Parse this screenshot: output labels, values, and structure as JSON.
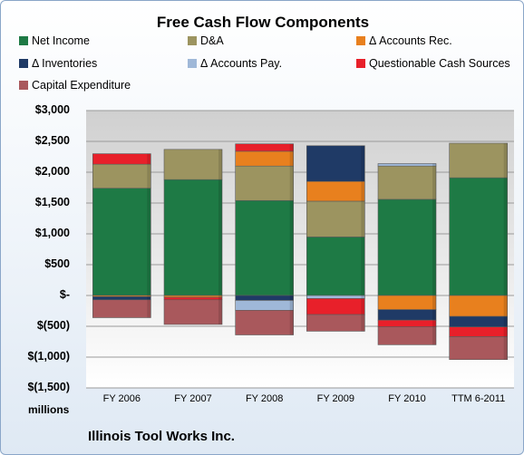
{
  "chart_data": {
    "type": "bar",
    "stacked": true,
    "title": "Free Cash Flow Components",
    "categories": [
      "FY 2006",
      "FY 2007",
      "FY 2008",
      "FY 2009",
      "FY 2010",
      "TTM 6-2011"
    ],
    "ylim": [
      -1500,
      3000
    ],
    "yticks": [
      3000,
      2500,
      2000,
      1500,
      1000,
      500,
      0,
      -500,
      -1000,
      -1500
    ],
    "ytick_labels": [
      "$3,000",
      "$2,500",
      "$2,000",
      "$1,500",
      "$1,000",
      "$500",
      "$-",
      "$(500)",
      "$(1,000)",
      "$(1,500)"
    ],
    "units_label": "millions",
    "legend_position": "top",
    "series": [
      {
        "name": "Net Income",
        "color": "#1e7a45",
        "values": [
          1740,
          1880,
          1540,
          950,
          1560,
          1910
        ]
      },
      {
        "name": "D&A",
        "color": "#9c9460",
        "values": [
          390,
          490,
          560,
          580,
          540,
          560
        ]
      },
      {
        "name": "Δ Accounts Rec.",
        "color": "#e8801e",
        "values": [
          -20,
          -30,
          240,
          320,
          -230,
          -340
        ]
      },
      {
        "name": "Δ Inventories",
        "color": "#1f3a66",
        "values": [
          -50,
          0,
          -80,
          580,
          -170,
          -170
        ]
      },
      {
        "name": "Δ Accounts Pay.",
        "color": "#9fb8d8",
        "values": [
          0,
          0,
          -160,
          -50,
          40,
          0
        ]
      },
      {
        "name": "Questionable Cash Sources",
        "color": "#e8202a",
        "values": [
          170,
          -40,
          120,
          -260,
          -110,
          -160
        ]
      },
      {
        "name": "Capital Expenditure",
        "color": "#a9585c",
        "values": [
          -290,
          -400,
          -400,
          -270,
          -290,
          -370
        ]
      }
    ]
  },
  "footer": "Illinois Tool Works Inc."
}
